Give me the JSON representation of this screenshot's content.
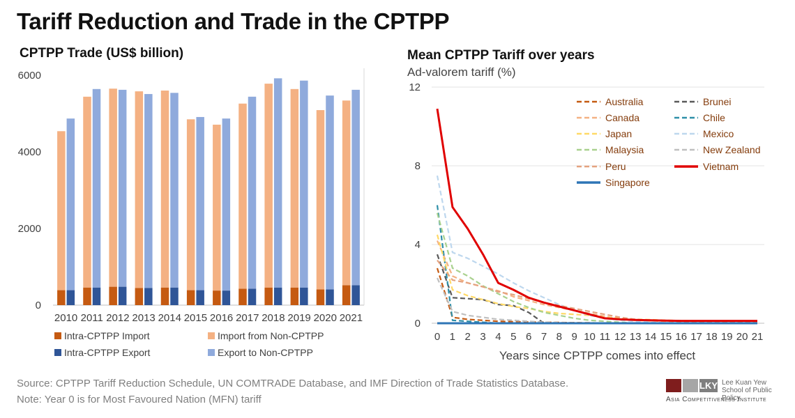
{
  "title": "Tariff Reduction and Trade in the CPTPP",
  "left_chart_title": "CPTPP Trade (US$ billion)",
  "right_chart_title": "Mean CPTPP Tariff over years",
  "right_chart_subtitle": "Ad-valorem tariff (%)",
  "footer": {
    "source": "Source: CPTPP Tariff Reduction Schedule, UN COMTRADE Database, and IMF Direction of Trade Statistics Database.",
    "note": "Note: Year 0 is for Most Favoured Nation (MFN) tariff"
  },
  "logo": {
    "letters": "LKY",
    "line1": "Lee Kuan Yew",
    "line2": "School of Public Policy",
    "line3": "Asia Competitiveness Institute"
  },
  "chart_data": [
    {
      "type": "bar",
      "title": "CPTPP Trade (US$ billion)",
      "ylim": [
        0,
        6000
      ],
      "yticks": [
        0,
        2000,
        4000,
        6000
      ],
      "categories": [
        "2010",
        "2011",
        "2012",
        "2013",
        "2014",
        "2015",
        "2016",
        "2017",
        "2018",
        "2019",
        "2020",
        "2021"
      ],
      "stacks": [
        {
          "series": [
            {
              "name": "Intra-CPTPP Import",
              "color": "#c55a11",
              "values": [
                390,
                460,
                480,
                450,
                460,
                390,
                380,
                430,
                460,
                460,
                410,
                520
              ]
            },
            {
              "name": "Import from Non-CPTPP",
              "color": "#f4b183",
              "values": [
                4150,
                4980,
                5170,
                5130,
                5140,
                4460,
                4330,
                4830,
                5320,
                5180,
                4680,
                4820
              ]
            }
          ]
        },
        {
          "series": [
            {
              "name": "Intra-CPTPP Export",
              "color": "#2f5597",
              "values": [
                390,
                460,
                480,
                450,
                460,
                390,
                380,
                430,
                460,
                460,
                410,
                520
              ]
            },
            {
              "name": "Export to Non-CPTPP",
              "color": "#8faadc",
              "values": [
                4480,
                5180,
                5140,
                5060,
                5080,
                4520,
                4490,
                5010,
                5460,
                5400,
                5060,
                5100
              ]
            }
          ]
        }
      ],
      "legend": [
        "Intra-CPTPP Import",
        "Import from Non-CPTPP",
        "Intra-CPTPP Export",
        "Export to Non-CPTPP"
      ]
    },
    {
      "type": "line",
      "title": "Mean CPTPP Tariff over years",
      "ylabel": "Ad-valorem tariff (%)",
      "xlabel": "Years since CPTPP comes into effect",
      "xlim": [
        0,
        21
      ],
      "ylim": [
        0,
        12
      ],
      "yticks": [
        0,
        4,
        8,
        12
      ],
      "x": [
        0,
        1,
        2,
        3,
        4,
        5,
        6,
        7,
        8,
        9,
        10,
        11,
        12,
        13,
        14,
        15,
        16,
        17,
        18,
        19,
        20,
        21
      ],
      "series": [
        {
          "name": "Australia",
          "color": "#c55a11",
          "dash": true,
          "points": [
            [
              0,
              2.8
            ],
            [
              1,
              0.3
            ],
            [
              2,
              0.2
            ],
            [
              3,
              0.15
            ],
            [
              4,
              0.1
            ],
            [
              5,
              0.08
            ],
            [
              6,
              0.06
            ],
            [
              7,
              0.05
            ],
            [
              8,
              0.04
            ],
            [
              9,
              0.03
            ],
            [
              10,
              0.02
            ],
            [
              11,
              0.0
            ]
          ]
        },
        {
          "name": "Brunei",
          "color": "#595959",
          "dash": true,
          "points": [
            [
              0,
              3.5
            ],
            [
              1,
              1.3
            ],
            [
              2,
              1.25
            ],
            [
              3,
              1.2
            ],
            [
              4,
              0.95
            ],
            [
              5,
              0.9
            ],
            [
              6,
              0.55
            ],
            [
              7,
              0.0
            ]
          ]
        },
        {
          "name": "Canada",
          "color": "#f4b183",
          "dash": true,
          "points": [
            [
              0,
              4.2
            ],
            [
              1,
              2.4
            ],
            [
              2,
              2.05
            ],
            [
              3,
              1.85
            ],
            [
              4,
              1.65
            ],
            [
              5,
              1.35
            ],
            [
              6,
              1.15
            ],
            [
              7,
              0.95
            ],
            [
              8,
              0.8
            ],
            [
              9,
              0.65
            ],
            [
              10,
              0.5
            ],
            [
              11,
              0.35
            ],
            [
              12,
              0.2
            ],
            [
              13,
              0.15
            ],
            [
              14,
              0.12
            ],
            [
              15,
              0.1
            ],
            [
              16,
              0.09
            ],
            [
              17,
              0.08
            ],
            [
              18,
              0.07
            ],
            [
              19,
              0.06
            ],
            [
              20,
              0.05
            ],
            [
              21,
              0.05
            ]
          ]
        },
        {
          "name": "Chile",
          "color": "#2e8fa8",
          "dash": true,
          "points": [
            [
              0,
              6.0
            ],
            [
              1,
              0.15
            ],
            [
              2,
              0.1
            ],
            [
              3,
              0.05
            ],
            [
              4,
              0.0
            ]
          ]
        },
        {
          "name": "Japan",
          "color": "#ffd966",
          "dash": true,
          "points": [
            [
              0,
              4.5
            ],
            [
              1,
              1.7
            ],
            [
              2,
              1.4
            ],
            [
              3,
              1.2
            ],
            [
              4,
              1.0
            ],
            [
              5,
              0.85
            ],
            [
              6,
              0.75
            ],
            [
              7,
              0.6
            ],
            [
              8,
              0.5
            ],
            [
              9,
              0.45
            ],
            [
              10,
              0.4
            ],
            [
              11,
              0.3
            ],
            [
              12,
              0.25
            ],
            [
              13,
              0.2
            ],
            [
              14,
              0.18
            ],
            [
              15,
              0.15
            ],
            [
              16,
              0.13
            ],
            [
              17,
              0.12
            ],
            [
              18,
              0.11
            ],
            [
              19,
              0.1
            ],
            [
              20,
              0.1
            ],
            [
              21,
              0.1
            ]
          ]
        },
        {
          "name": "Mexico",
          "color": "#bdd7ee",
          "dash": true,
          "points": [
            [
              0,
              7.5
            ],
            [
              1,
              3.6
            ],
            [
              2,
              3.3
            ],
            [
              3,
              2.9
            ],
            [
              4,
              2.5
            ],
            [
              5,
              2.05
            ],
            [
              6,
              1.65
            ],
            [
              7,
              1.3
            ],
            [
              8,
              0.95
            ],
            [
              9,
              0.65
            ],
            [
              10,
              0.4
            ],
            [
              11,
              0.25
            ],
            [
              12,
              0.15
            ],
            [
              13,
              0.1
            ],
            [
              14,
              0.05
            ],
            [
              15,
              0.02
            ],
            [
              16,
              0.01
            ],
            [
              17,
              0.01
            ],
            [
              18,
              0.01
            ],
            [
              19,
              0.0
            ]
          ]
        },
        {
          "name": "Malaysia",
          "color": "#a9d18e",
          "dash": true,
          "points": [
            [
              0,
              5.6
            ],
            [
              1,
              2.8
            ],
            [
              2,
              2.4
            ],
            [
              3,
              1.9
            ],
            [
              4,
              1.5
            ],
            [
              5,
              1.1
            ],
            [
              6,
              0.8
            ],
            [
              7,
              0.55
            ],
            [
              8,
              0.4
            ],
            [
              9,
              0.25
            ],
            [
              10,
              0.15
            ],
            [
              11,
              0.1
            ],
            [
              12,
              0.05
            ],
            [
              13,
              0.0
            ]
          ]
        },
        {
          "name": "New Zealand",
          "color": "#bfbfbf",
          "dash": true,
          "points": [
            [
              0,
              2.3
            ],
            [
              1,
              0.6
            ],
            [
              2,
              0.4
            ],
            [
              3,
              0.3
            ],
            [
              4,
              0.2
            ],
            [
              5,
              0.15
            ],
            [
              6,
              0.1
            ],
            [
              7,
              0.05
            ],
            [
              8,
              0.03
            ],
            [
              9,
              0.02
            ],
            [
              10,
              0.0
            ]
          ]
        },
        {
          "name": "Peru",
          "color": "#e4a27f",
          "dash": true,
          "points": [
            [
              0,
              3.2
            ],
            [
              1,
              2.2
            ],
            [
              2,
              2.05
            ],
            [
              3,
              1.85
            ],
            [
              4,
              1.6
            ],
            [
              5,
              1.45
            ],
            [
              6,
              1.25
            ],
            [
              7,
              1.05
            ],
            [
              8,
              0.9
            ],
            [
              9,
              0.75
            ],
            [
              10,
              0.6
            ],
            [
              11,
              0.45
            ],
            [
              12,
              0.3
            ],
            [
              13,
              0.2
            ],
            [
              14,
              0.15
            ],
            [
              15,
              0.12
            ],
            [
              16,
              0.1
            ],
            [
              17,
              0.08
            ],
            [
              18,
              0.07
            ],
            [
              19,
              0.06
            ],
            [
              20,
              0.05
            ],
            [
              21,
              0.05
            ]
          ]
        },
        {
          "name": "Vietnam",
          "color": "#e00000",
          "dash": false,
          "points": [
            [
              0,
              10.9
            ],
            [
              1,
              5.9
            ],
            [
              2,
              4.8
            ],
            [
              3,
              3.5
            ],
            [
              4,
              2.05
            ],
            [
              5,
              1.7
            ],
            [
              6,
              1.3
            ],
            [
              7,
              1.05
            ],
            [
              8,
              0.85
            ],
            [
              9,
              0.65
            ],
            [
              10,
              0.45
            ],
            [
              11,
              0.25
            ],
            [
              12,
              0.2
            ],
            [
              13,
              0.17
            ],
            [
              14,
              0.15
            ],
            [
              15,
              0.13
            ],
            [
              16,
              0.12
            ],
            [
              17,
              0.12
            ],
            [
              18,
              0.12
            ],
            [
              19,
              0.12
            ],
            [
              20,
              0.12
            ],
            [
              21,
              0.12
            ]
          ]
        },
        {
          "name": "Singapore",
          "color": "#2e75b6",
          "dash": false,
          "points": [
            [
              0,
              0.0
            ],
            [
              21,
              0.0
            ]
          ]
        }
      ],
      "legend_order": [
        "Australia",
        "Brunei",
        "Canada",
        "Chile",
        "Japan",
        "Mexico",
        "Malaysia",
        "New Zealand",
        "Peru",
        "Vietnam",
        "Singapore"
      ]
    }
  ]
}
